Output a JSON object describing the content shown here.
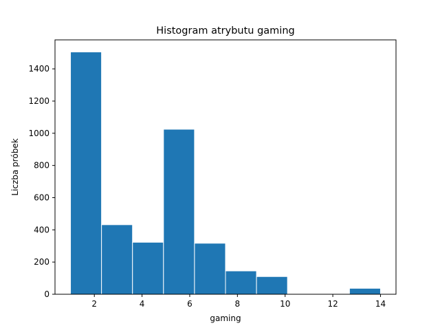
{
  "chart_data": {
    "type": "bar",
    "title": "Histogram atrybutu gaming",
    "xlabel": "gaming",
    "ylabel": "Liczba próbek",
    "bin_edges": [
      1.0,
      2.3,
      3.6,
      4.9,
      6.2,
      7.5,
      8.8,
      10.1,
      11.4,
      12.7,
      14.0
    ],
    "values": [
      1505,
      432,
      323,
      1025,
      317,
      145,
      110,
      0,
      0,
      37
    ],
    "xlim": [
      0.35,
      14.65
    ],
    "ylim": [
      0,
      1580
    ],
    "xticks": [
      2,
      4,
      6,
      8,
      10,
      12,
      14
    ],
    "yticks": [
      0,
      200,
      400,
      600,
      800,
      1000,
      1200,
      1400
    ],
    "bar_color": "#1f77b4",
    "edge_color": "#ffffff",
    "grid": false
  }
}
